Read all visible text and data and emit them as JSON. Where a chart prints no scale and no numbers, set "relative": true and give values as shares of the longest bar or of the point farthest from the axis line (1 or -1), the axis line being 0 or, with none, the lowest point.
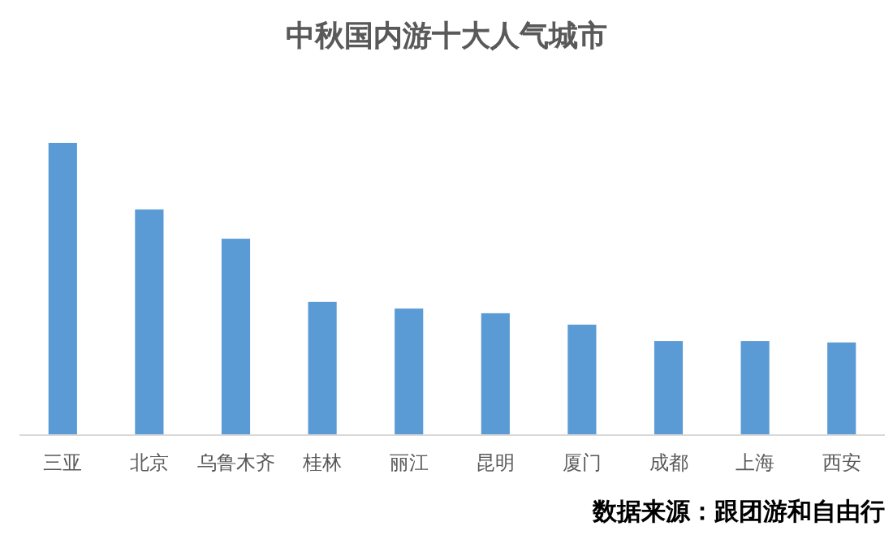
{
  "chart_data": {
    "type": "bar",
    "title": "中秋国内游十大人气城市",
    "categories": [
      "三亚",
      "北京",
      "乌鲁木齐",
      "桂林",
      "丽江",
      "昆明",
      "厦门",
      "成都",
      "上海",
      "西安"
    ],
    "values": [
      1,
      0.772,
      0.672,
      0.456,
      0.433,
      0.417,
      0.378,
      0.322,
      0.322,
      0.317
    ],
    "color": "#5b9bd5",
    "relative": true,
    "annotations": [
      "数据来源：跟团游和自由行"
    ]
  }
}
